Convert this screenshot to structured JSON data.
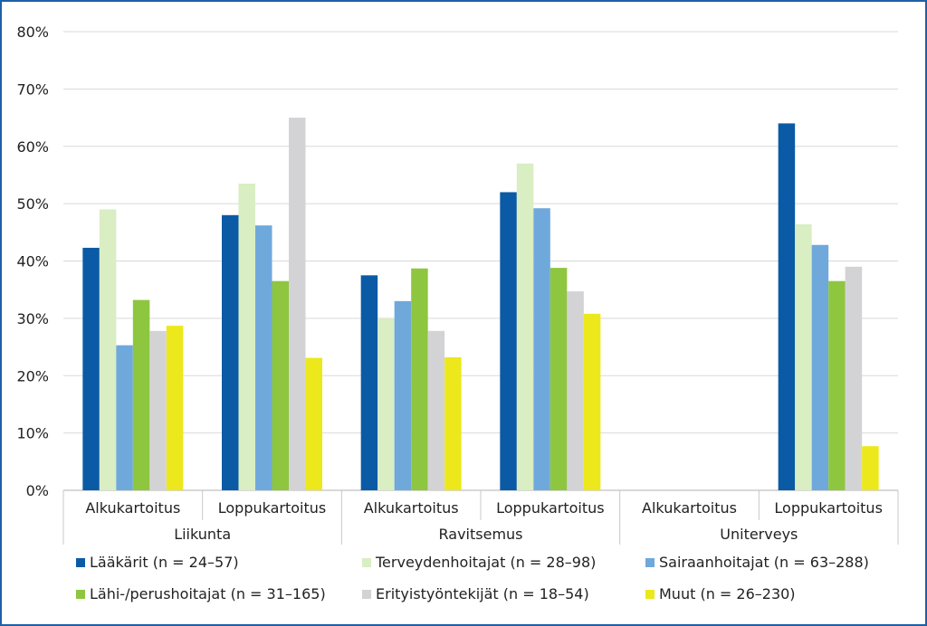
{
  "chart_data": {
    "type": "bar",
    "title": "",
    "xlabel": "",
    "ylabel": "",
    "ylim": [
      0,
      80
    ],
    "yticks": [
      0,
      10,
      20,
      30,
      40,
      50,
      60,
      70,
      80
    ],
    "ytick_labels": [
      "0%",
      "10%",
      "20%",
      "30%",
      "40%",
      "50%",
      "60%",
      "70%",
      "80%"
    ],
    "groups": [
      {
        "name": "Liikunta",
        "categories": [
          "Alkukartoitus",
          "Loppukartoitus"
        ]
      },
      {
        "name": "Ravitsemus",
        "categories": [
          "Alkukartoitus",
          "Loppukartoitus"
        ]
      },
      {
        "name": "Uniterveys",
        "categories": [
          "Alkukartoitus",
          "Loppukartoitus"
        ]
      }
    ],
    "categories": [
      "Liikunta / Alkukartoitus",
      "Liikunta / Loppukartoitus",
      "Ravitsemus / Alkukartoitus",
      "Ravitsemus / Loppukartoitus",
      "Uniterveys / Alkukartoitus",
      "Uniterveys / Loppukartoitus"
    ],
    "series": [
      {
        "name": "Lääkärit (n = 24–57)",
        "color": "#0b5aa6",
        "values": [
          42.3,
          48,
          37.5,
          52,
          null,
          64
        ]
      },
      {
        "name": "Terveydenhoitajat (n = 28–98)",
        "color": "#d9eec3",
        "values": [
          49,
          53.5,
          30,
          57,
          null,
          46.4
        ]
      },
      {
        "name": "Sairaanhoitajat (n = 63–288)",
        "color": "#6fa9dc",
        "values": [
          25.3,
          46.2,
          33,
          49.2,
          null,
          42.8
        ]
      },
      {
        "name": "Lähi-/perushoitajat (n = 31–165)",
        "color": "#8ec63f",
        "values": [
          33.2,
          36.5,
          38.7,
          38.8,
          null,
          36.5
        ]
      },
      {
        "name": "Erityistyöntekijät (n = 18–54)",
        "color": "#d3d3d6",
        "values": [
          27.8,
          65,
          27.8,
          34.7,
          null,
          39
        ]
      },
      {
        "name": "Muut (n = 26–230)",
        "color": "#ece81b",
        "values": [
          28.7,
          23.1,
          23.2,
          30.8,
          null,
          7.7
        ]
      }
    ],
    "grid": true,
    "legend_position": "bottom"
  }
}
